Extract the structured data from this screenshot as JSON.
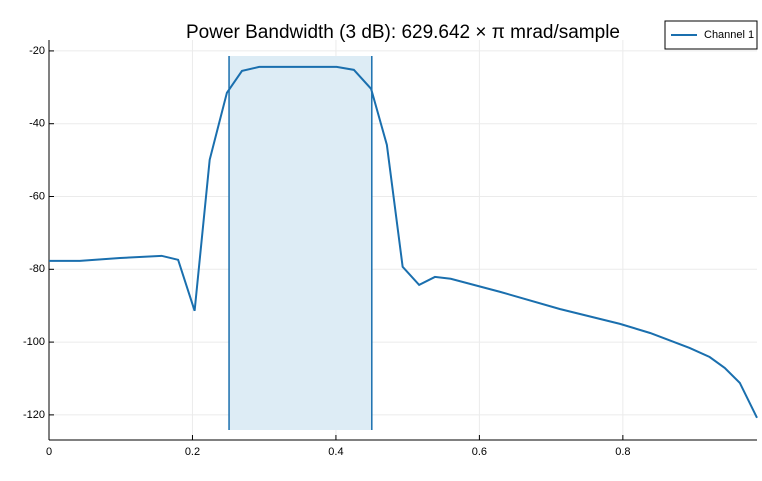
{
  "chart_data": {
    "type": "line",
    "title": "Power Bandwidth (3 dB): 629.642 × π mrad/sample",
    "x": [
      0,
      0.043,
      0.099,
      0.157,
      0.18,
      0.203,
      0.224,
      0.248,
      0.269,
      0.293,
      0.336,
      0.401,
      0.425,
      0.449,
      0.471,
      0.493,
      0.516,
      0.538,
      0.56,
      0.629,
      0.712,
      0.796,
      0.838,
      0.893,
      0.921,
      0.942,
      0.963,
      0.987
    ],
    "series": [
      {
        "name": "Channel 1",
        "color": "#1a6fae",
        "values": [
          -77.7,
          -77.7,
          -76.9,
          -76.3,
          -77.4,
          -91.4,
          -49.9,
          -31.5,
          -25.5,
          -24.4,
          -24.4,
          -24.4,
          -25.2,
          -30.4,
          -45.8,
          -79.3,
          -84.3,
          -82.1,
          -82.6,
          -86.2,
          -90.9,
          -95.0,
          -97.5,
          -101.6,
          -104.1,
          -107.1,
          -111.2,
          -120.8
        ]
      }
    ],
    "band": [
      0.251,
      0.45
    ],
    "band_color": "#ddecf5",
    "xlim": [
      0,
      0.987
    ],
    "xticks": [
      0,
      0.2,
      0.4,
      0.6,
      0.8
    ],
    "ylim": [
      -126.9,
      -17
    ],
    "yticks": [
      -20,
      -40,
      -60,
      -80,
      -100,
      -120
    ],
    "grid": true,
    "legend": "top-right"
  }
}
